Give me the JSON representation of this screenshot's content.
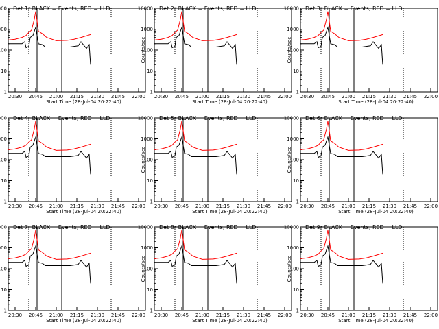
{
  "chart_data": {
    "type": "line",
    "y_scale": "log",
    "y_range": [
      1,
      10000
    ],
    "y_tick_labels": [
      "1",
      "10",
      "100",
      "1000",
      "10000"
    ],
    "x_range": [
      "20:25",
      "22:05"
    ],
    "x_tick_labels": [
      "20:30",
      "20:45",
      "21:00",
      "21:15",
      "21:30",
      "21:45",
      "22:00"
    ],
    "ylabel": "Counts/sec",
    "xlabel": "Start Time (28-Jul-04 20:22:40)",
    "series_colors": {
      "events": "#000000",
      "lld": "#ff0000"
    },
    "vertical_markers": [
      {
        "time": "20:40",
        "style": "dotted"
      },
      {
        "time": "20:46",
        "style": "solid"
      },
      {
        "time": "21:04",
        "style": "solid"
      },
      {
        "time": "21:40",
        "style": "dotted"
      }
    ],
    "panels": [
      {
        "title": "Det 1r BLACK = Events, RED = LLD"
      },
      {
        "title": "Det 2r BLACK = Events, RED = LLD"
      },
      {
        "title": "Det 3r BLACK = Events, RED = LLD"
      },
      {
        "title": "Det 4r BLACK = Events, RED = LLD"
      },
      {
        "title": "Det 5r BLACK = Events, RED = LLD"
      },
      {
        "title": "Det 6r BLACK = Events, RED = LLD"
      },
      {
        "title": "Det 7r BLACK = Events, RED = LLD"
      },
      {
        "title": "Det 8r BLACK = Events, RED = LLD"
      },
      {
        "title": "Det 9r BLACK = Events, RED = LLD"
      }
    ],
    "series": [
      {
        "key": "events",
        "x": [
          "20:25",
          "20:32",
          "20:35",
          "20:37",
          "20:38",
          "20:40",
          "20:41",
          "20:43",
          "20:44",
          "20:45",
          "20:46",
          "20:47",
          "20:50",
          "20:52",
          "21:00",
          "21:10",
          "21:16",
          "21:18",
          "21:22",
          "21:24",
          "21:25"
        ],
        "y": [
          200,
          200,
          200,
          250,
          130,
          150,
          400,
          500,
          800,
          1200,
          500,
          200,
          180,
          140,
          140,
          140,
          160,
          250,
          120,
          180,
          20
        ]
      },
      {
        "key": "lld",
        "x": [
          "20:25",
          "20:30",
          "20:35",
          "20:38",
          "20:40",
          "20:42",
          "20:44",
          "20:45",
          "20:46",
          "20:47",
          "20:50",
          "20:53",
          "21:00",
          "21:08",
          "21:13",
          "21:18",
          "21:25"
        ],
        "y": [
          300,
          330,
          400,
          500,
          700,
          900,
          3000,
          7000,
          2500,
          800,
          600,
          400,
          280,
          290,
          330,
          400,
          550
        ]
      }
    ]
  }
}
